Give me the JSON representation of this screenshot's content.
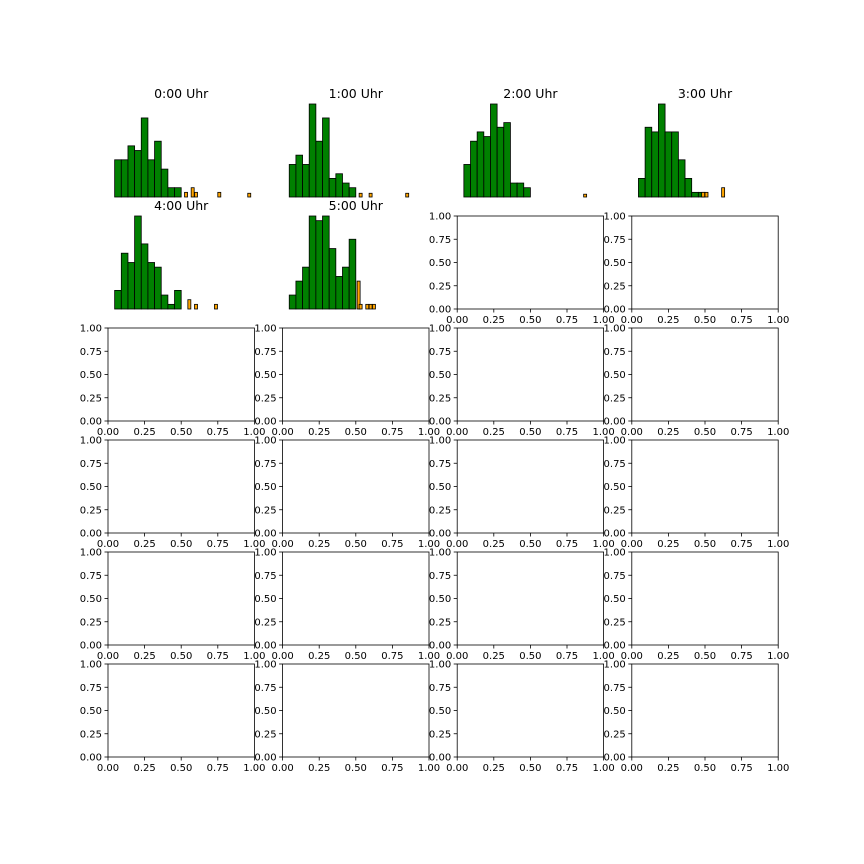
{
  "figure": {
    "rows": 6,
    "cols": 4,
    "colors": {
      "main": "#008000",
      "outlier": "#ffa500",
      "edge": "#000000",
      "axis": "#000000"
    }
  },
  "chart_data": [
    {
      "type": "bar",
      "title": "0:00 Uhr",
      "show_axes": false,
      "series": [
        {
          "name": "",
          "color": "#008000",
          "x": [
            0.0,
            0.05,
            0.1,
            0.15,
            0.2,
            0.25,
            0.3,
            0.35,
            0.4,
            0.45,
            0.5
          ],
          "values": [
            0.4,
            0.4,
            0.55,
            0.5,
            0.85,
            0.4,
            0.6,
            0.3,
            0.1,
            0.1,
            0.0
          ]
        },
        {
          "name": "",
          "color": "#ffa500",
          "x": [
            0.525,
            0.575,
            0.6,
            0.775,
            1.0
          ],
          "values": [
            0.05,
            0.1,
            0.05,
            0.05,
            0.04
          ]
        }
      ]
    },
    {
      "type": "bar",
      "title": "1:00 Uhr",
      "show_axes": false,
      "series": [
        {
          "name": "",
          "color": "#008000",
          "x": [
            0.0,
            0.05,
            0.1,
            0.15,
            0.2,
            0.25,
            0.3,
            0.35,
            0.4,
            0.45,
            0.5
          ],
          "values": [
            0.35,
            0.45,
            0.35,
            1.0,
            0.6,
            0.85,
            0.2,
            0.25,
            0.15,
            0.1,
            0.0
          ]
        },
        {
          "name": "",
          "color": "#ffa500",
          "x": [
            0.525,
            0.6,
            0.875
          ],
          "values": [
            0.04,
            0.04,
            0.04
          ]
        }
      ]
    },
    {
      "type": "bar",
      "title": "2:00 Uhr",
      "show_axes": false,
      "series": [
        {
          "name": "",
          "color": "#008000",
          "x": [
            0.0,
            0.05,
            0.1,
            0.15,
            0.2,
            0.25,
            0.3,
            0.35,
            0.4,
            0.45,
            0.5,
            0.55,
            0.6
          ],
          "values": [
            0.35,
            0.6,
            0.7,
            0.65,
            1.0,
            0.75,
            0.8,
            0.15,
            0.15,
            0.1,
            0.0,
            0.0,
            0.0
          ]
        },
        {
          "name": "",
          "color": "#ffa500",
          "x": [
            0.9
          ],
          "values": [
            0.03
          ]
        }
      ]
    },
    {
      "type": "bar",
      "title": "3:00 Uhr",
      "show_axes": false,
      "series": [
        {
          "name": "",
          "color": "#008000",
          "x": [
            0.0,
            0.05,
            0.1,
            0.15,
            0.2,
            0.25,
            0.3,
            0.35,
            0.4,
            0.45
          ],
          "values": [
            0.2,
            0.75,
            0.7,
            1.0,
            0.7,
            0.7,
            0.4,
            0.2,
            0.05,
            0.05
          ]
        },
        {
          "name": "",
          "color": "#ffa500",
          "x": [
            0.475,
            0.5,
            0.625
          ],
          "values": [
            0.05,
            0.05,
            0.1
          ]
        }
      ]
    },
    {
      "type": "bar",
      "title": "4:00 Uhr",
      "show_axes": false,
      "series": [
        {
          "name": "",
          "color": "#008000",
          "x": [
            0.0,
            0.05,
            0.1,
            0.15,
            0.2,
            0.25,
            0.3,
            0.35,
            0.4,
            0.45
          ],
          "values": [
            0.2,
            0.6,
            0.5,
            1.0,
            0.7,
            0.5,
            0.45,
            0.15,
            0.05,
            0.2
          ]
        },
        {
          "name": "",
          "color": "#ffa500",
          "x": [
            0.55,
            0.6,
            0.75
          ],
          "values": [
            0.1,
            0.05,
            0.05
          ]
        }
      ]
    },
    {
      "type": "bar",
      "title": "5:00 Uhr",
      "show_axes": false,
      "series": [
        {
          "name": "",
          "color": "#008000",
          "x": [
            0.0,
            0.05,
            0.1,
            0.15,
            0.2,
            0.25,
            0.3,
            0.35,
            0.4,
            0.45,
            0.5
          ],
          "values": [
            0.15,
            0.3,
            0.45,
            1.0,
            0.95,
            1.0,
            0.65,
            0.35,
            0.45,
            0.75,
            0.0
          ]
        },
        {
          "name": "",
          "color": "#ffa500",
          "x": [
            0.51,
            0.525,
            0.575,
            0.6,
            0.625
          ],
          "values": [
            0.3,
            0.05,
            0.05,
            0.05,
            0.05
          ]
        }
      ]
    }
  ],
  "empty_axes": {
    "count": 18,
    "xlim": [
      0,
      1
    ],
    "ylim": [
      0,
      1
    ],
    "xticks": [
      "0.00",
      "0.25",
      "0.50",
      "0.75",
      "1.00"
    ],
    "yticks": [
      "0.00",
      "0.25",
      "0.50",
      "0.75",
      "1.00"
    ]
  }
}
